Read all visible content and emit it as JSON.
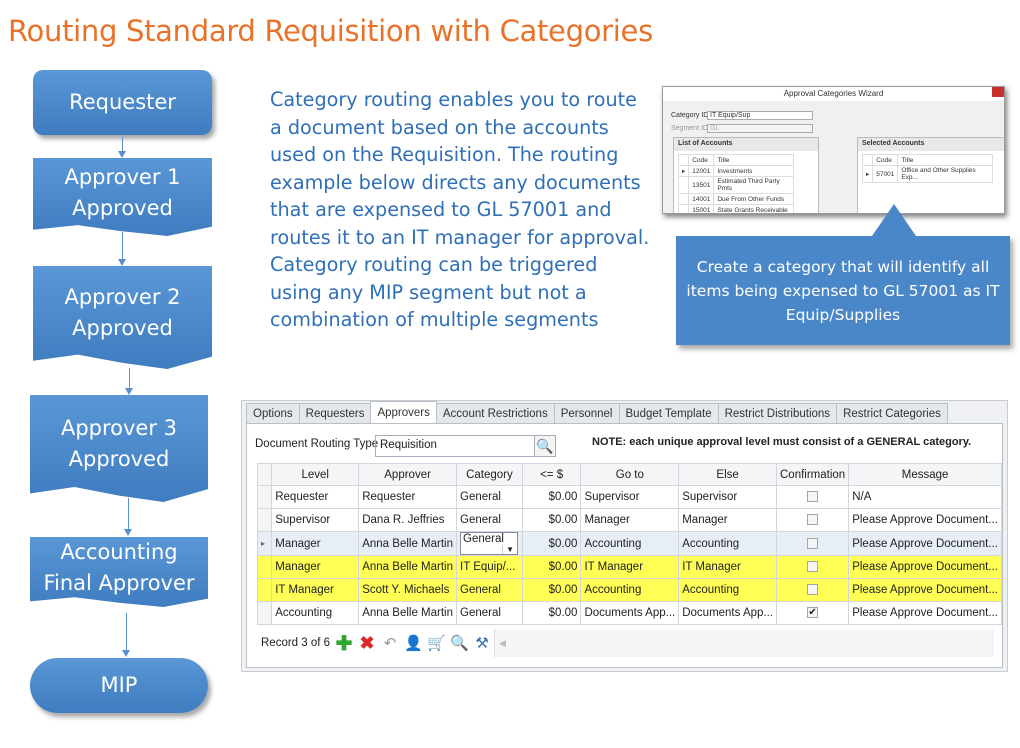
{
  "title": "Routing Standard Requisition with Categories",
  "flow": {
    "requester": "Requester",
    "approver1": "Approver 1 Approved",
    "approver2": "Approver 2 Approved",
    "approver3": "Approver 3 Approved",
    "accounting": "Accounting Final Approver",
    "mip": "MIP"
  },
  "description": "Category routing enables you to route a document based on the accounts used on the Requisition. The routing example below directs any documents that are expensed to GL 57001 and routes it to an IT manager for approval. Category routing can be triggered using any MIP segment but not a combination of multiple segments",
  "wizard": {
    "title": "Approval Categories Wizard",
    "category_id_label": "Category ID",
    "category_id": "IT Equip/Sup",
    "segment_id_label": "Segment ID",
    "segment_id": "GL",
    "list_title": "List of Accounts",
    "selected_title": "Selected Accounts",
    "code_header": "Code",
    "title_header": "Title",
    "accounts": [
      {
        "code": "12001",
        "title": "Investments"
      },
      {
        "code": "13501",
        "title": "Estimated Third Party Pmts"
      },
      {
        "code": "14001",
        "title": "Due From Other Funds"
      },
      {
        "code": "15001",
        "title": "State Grants Receivable"
      }
    ],
    "selected": [
      {
        "code": "57001",
        "title": "Office and Other Supplies Exp..."
      }
    ]
  },
  "callout": "Create a category that will identify all items being expensed to GL 57001 as IT Equip/Supplies",
  "panel": {
    "tabs": [
      "Options",
      "Requesters",
      "Approvers",
      "Account Restrictions",
      "Personnel",
      "Budget Template",
      "Restrict Distributions",
      "Restrict Categories"
    ],
    "active_tab": "Approvers",
    "routing_type_label": "Document Routing Type",
    "routing_type": "Requisition",
    "note": "NOTE: each unique approval level must consist of a GENERAL category.",
    "columns": [
      "Level",
      "Approver",
      "Category",
      "<= $",
      "Go to",
      "Else",
      "Confirmation",
      "Message"
    ],
    "rows": [
      {
        "level": "Requester",
        "approver": "Requester",
        "category": "General",
        "amount": "$0.00",
        "goto": "Supervisor",
        "else": "Supervisor",
        "confirm": false,
        "message": "N/A"
      },
      {
        "level": "Supervisor",
        "approver": "Dana R. Jeffries",
        "category": "General",
        "amount": "$0.00",
        "goto": "Manager",
        "else": "Manager",
        "confirm": false,
        "message": "Please Approve Document..."
      },
      {
        "level": "Manager",
        "approver": "Anna Belle Martin",
        "category": "General",
        "amount": "$0.00",
        "goto": "Accounting",
        "else": "Accounting",
        "confirm": false,
        "message": "Please Approve Document..."
      },
      {
        "level": "Manager",
        "approver": "Anna Belle Martin",
        "category": "IT Equip/...",
        "amount": "$0.00",
        "goto": "IT Manager",
        "else": "IT Manager",
        "confirm": false,
        "message": "Please Approve Document..."
      },
      {
        "level": "IT Manager",
        "approver": "Scott Y. Michaels",
        "category": "General",
        "amount": "$0.00",
        "goto": "Accounting",
        "else": "Accounting",
        "confirm": false,
        "message": "Please Approve Document..."
      },
      {
        "level": "Accounting",
        "approver": "Anna Belle Martin",
        "category": "General",
        "amount": "$0.00",
        "goto": "Documents App...",
        "else": "Documents App...",
        "confirm": true,
        "message": "Please Approve Document..."
      }
    ],
    "record": "Record 3 of 6",
    "highlight_color": "#ffff55"
  }
}
